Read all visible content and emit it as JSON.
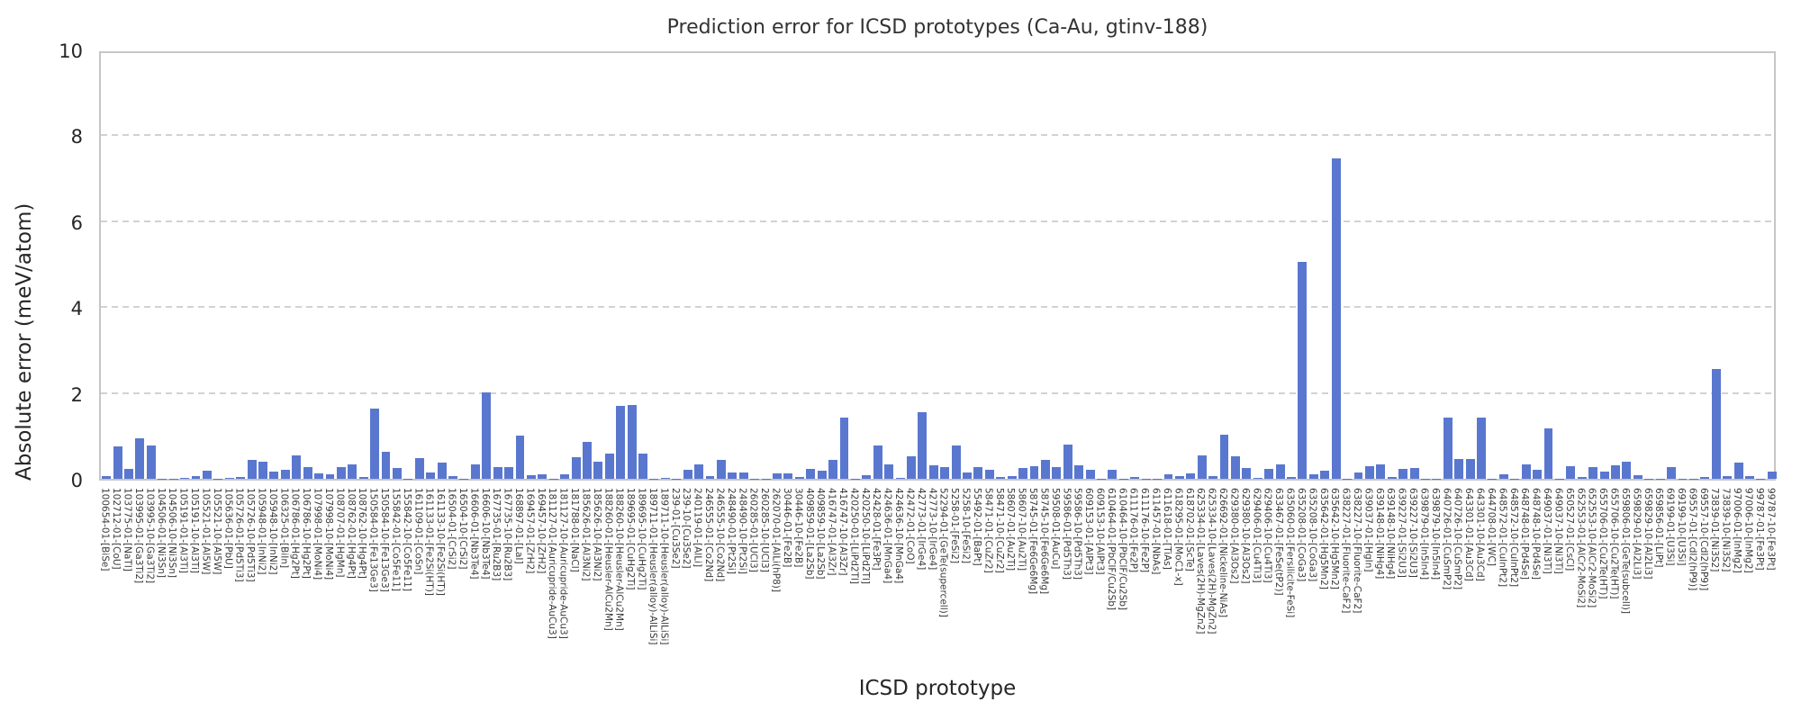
{
  "title": "Prediction error for ICSD prototypes (Ca-Au, gtinv-188)",
  "chart_data": {
    "type": "bar",
    "title": "Prediction error for ICSD prototypes (Ca-Au, gtinv-188)",
    "xlabel": "ICSD prototype",
    "ylabel": "Absolute error (meV/atom)",
    "ylim": [
      0,
      10
    ],
    "yticks": [
      0,
      2,
      4,
      6,
      8,
      10
    ],
    "grid": true,
    "grid_values": [
      2,
      4,
      6,
      8
    ],
    "legend": "none",
    "bar_color": "#5a77cf",
    "categories": [
      "100654-01-[BiSe]",
      "102712-01-[CoU]",
      "103775-01-[NaTl]",
      "103995-01-[Ga3Ti2]",
      "103995-10-[Ga3Ti2]",
      "104506-01-[Ni3Sn]",
      "104506-10-[Ni3Sn]",
      "105191-01-[Al3Ti]",
      "105191-10-[Al3Ti]",
      "105521-01-[Al5W]",
      "105521-10-[Al5W]",
      "105636-01-[PbU]",
      "105726-01-[Pd5Ti3]",
      "105726-10-[Pd5Ti3]",
      "105948-01-[InNi2]",
      "105948-10-[InNi2]",
      "106325-01-[BiIn]",
      "106786-01-[Hg2Pt]",
      "106786-10-[Hg2Pt]",
      "107998-01-[MoNi4]",
      "107998-10-[MoNi4]",
      "108707-01-[HgMn]",
      "108762-01-[Hg4Pt]",
      "108762-10-[Hg4Pt]",
      "150584-01-[Fe13Ge3]",
      "150584-10-[Fe13Ge3]",
      "155842-01-[Co5Fe11]",
      "155842-10-[Co5Fe11]",
      "161109-01-[CoSn]",
      "161133-01-[Fe2Si(HT)]",
      "161133-10-[Fe2Si(HT)]",
      "16504-01-[CrSi2]",
      "16504-10-[CrSi2]",
      "16606-01-[Nb3Te4]",
      "16606-10-[Nb3Te4]",
      "167735-01-[Ru2B3]",
      "167735-10-[Ru2B3]",
      "168897-01-[LaI]",
      "169457-01-[ZrH2]",
      "169457-10-[ZrH2]",
      "181127-01-[Auricupride-AuCu3]",
      "181127-10-[Auricupride-AuCu3]",
      "181788-01-[NaCl]",
      "185626-01-[Al3Ni2]",
      "185626-10-[Al3Ni2]",
      "188260-01-[Heusler-AlCu2Mn]",
      "188260-10-[Heusler-AlCu2Mn]",
      "189695-01-[CuHg2Ti]",
      "189695-10-[CuHg2Ti]",
      "189711-01-[Heusler(alloy)-AlLiSi]",
      "189711-10-[Heusler(alloy)-AlLiSi]",
      "239-01-[Cu3Se2]",
      "239-10-[Cu3Se2]",
      "240119-01-[AlLi]",
      "246555-01-[Co2Nd]",
      "246555-10-[Co2Nd]",
      "248490-01-[Pt2Si]",
      "248490-10-[Pt2Si]",
      "260285-01-[UCl3]",
      "260285-10-[UCl3]",
      "262070-01-[AlLi(hP8)]",
      "30446-01-[Fe2B]",
      "30446-10-[Fe2B]",
      "409859-01-[La2Sb]",
      "409859-10-[La2Sb]",
      "416747-01-[Al3Zr]",
      "416747-10-[Al3Zr]",
      "420250-01-[LiPd2Tl]",
      "420250-10-[LiPd2Tl]",
      "42428-01-[Fe3Pt]",
      "424636-01-[MnGa4]",
      "424636-10-[MnGa4]",
      "42472-01-[CoO]",
      "42773-01-[IrGe4]",
      "42773-10-[IrGe4]",
      "52294-01-[GeTe(supercell)]",
      "5258-01-[FeSi2]",
      "5258-10-[FeSi2]",
      "55492-01-[BaPt]",
      "58471-01-[CuZr2]",
      "58471-10-[CuZr2]",
      "58607-01-[Au2Ti]",
      "58607-10-[Au2Ti]",
      "58745-01-[Fe6Ge6Mg]",
      "58745-10-[Fe6Ge6Mg]",
      "59508-01-[AuCu]",
      "59586-01-[Pd5Th3]",
      "59586-10-[Pd5Th3]",
      "609153-01-[AlPt3]",
      "609153-10-[AlPt3]",
      "610464-01-[PbClF/Cu2Sb]",
      "610464-10-[PbClF/Cu2Sb]",
      "611176-01-[Fe2P]",
      "611176-10-[Fe2P]",
      "611457-01-[NbAs]",
      "611618-01-[TiAs]",
      "618295-01-[MoC1-x]",
      "618702-01-[ScTe]",
      "625334-01-[Laves(2H)-MgZn2]",
      "625334-10-[Laves(2H)-MgZn2]",
      "626692-01-[Nickeline-NiAs]",
      "629380-01-[Al3Os2]",
      "629380-10-[Al3Os2]",
      "629406-01-[Cu4Ti3]",
      "629406-10-[Cu4Ti3]",
      "633467-01-[FeSe(tP2)]",
      "635060-01-[Fersilicite-FeSi]",
      "635208-01-[CoGa3]",
      "635208-10-[CoGa3]",
      "635642-01-[Hg5Mn2]",
      "635642-10-[Hg5Mn2]",
      "638227-01-[Fluorite-CaF2]",
      "638227-10-[Fluorite-CaF2]",
      "639037-01-[HgIn]",
      "639148-01-[NiHg4]",
      "639148-10-[NiHg4]",
      "639227-01-[Si2U3]",
      "639227-10-[Si2U3]",
      "639879-01-[In5In4]",
      "639879-10-[In5In4]",
      "640726-01-[CuSmP2]",
      "640726-10-[CuSmP2]",
      "643301-01-[Au3Cd]",
      "643301-10-[Au3Cd]",
      "644708-01-[WC]",
      "648572-01-[CuInPt2]",
      "648572-10-[CuInPt2]",
      "648748-01-[Pd4Se]",
      "648748-10-[Pd4Se]",
      "649037-01-[Ni3Ti]",
      "649037-10-[Ni3Ti]",
      "650527-01-[CsCl]",
      "652553-01-[AlCr2-MoSi2]",
      "652553-10-[AlCr2-MoSi2]",
      "655706-01-[Cu2Te(HT)]",
      "655706-10-[Cu2Te(HT)]",
      "659806-01-[GeTe(subcell)]",
      "659829-01-[Al2Li3]",
      "659829-10-[Al2Li3]",
      "659856-01-[LiPt]",
      "69199-01-[U3Si]",
      "69199-10-[U3Si]",
      "69557-01-[CdI2(hP9)]",
      "69557-10-[CdI2(hP9)]",
      "73839-01-[Ni3S2]",
      "73839-10-[Ni3S2]",
      "97006-01-[InMg2]",
      "97006-10-[InMg2]",
      "99787-01-[Fe3Pt]",
      "99787-10-[Fe3Pt]"
    ],
    "values": [
      0.06,
      0.75,
      0.23,
      0.95,
      0.78,
      0.01,
      0.01,
      0.02,
      0.07,
      0.19,
      0.01,
      0.03,
      0.04,
      0.44,
      0.39,
      0.16,
      0.21,
      0.55,
      0.28,
      0.12,
      0.11,
      0.28,
      0.34,
      0.04,
      1.64,
      0.62,
      0.26,
      0.01,
      0.48,
      0.14,
      0.37,
      0.06,
      0.01,
      0.34,
      2.01,
      0.28,
      0.28,
      1.0,
      0.08,
      0.11,
      0.01,
      0.11,
      0.51,
      0.85,
      0.4,
      0.58,
      1.69,
      1.72,
      0.58,
      0.01,
      0.03,
      0.01,
      0.2,
      0.33,
      0.07,
      0.44,
      0.14,
      0.14,
      0.01,
      0.01,
      0.13,
      0.13,
      0.04,
      0.23,
      0.19,
      0.45,
      1.42,
      0.01,
      0.09,
      0.77,
      0.33,
      0.02,
      0.52,
      1.55,
      0.32,
      0.28,
      0.78,
      0.14,
      0.27,
      0.21,
      0.04,
      0.06,
      0.25,
      0.3,
      0.45,
      0.28,
      0.8,
      0.32,
      0.2,
      0.01,
      0.21,
      0.01,
      0.05,
      0.01,
      0.01,
      0.1,
      0.06,
      0.13,
      0.55,
      0.07,
      1.02,
      0.53,
      0.25,
      0.02,
      0.23,
      0.34,
      0.04,
      5.06,
      0.1,
      0.18,
      7.47,
      0.01,
      0.14,
      0.29,
      0.34,
      0.04,
      0.23,
      0.25,
      0.01,
      0.01,
      1.42,
      0.46,
      0.46,
      1.42,
      0.01,
      0.11,
      0.01,
      0.34,
      0.21,
      1.17,
      0.01,
      0.3,
      0.04,
      0.28,
      0.16,
      0.32,
      0.39,
      0.09,
      0.01,
      0.01,
      0.27,
      0.01,
      0.01,
      0.05,
      2.56,
      0.07,
      0.37,
      0.07,
      0.01,
      0.17
    ]
  }
}
